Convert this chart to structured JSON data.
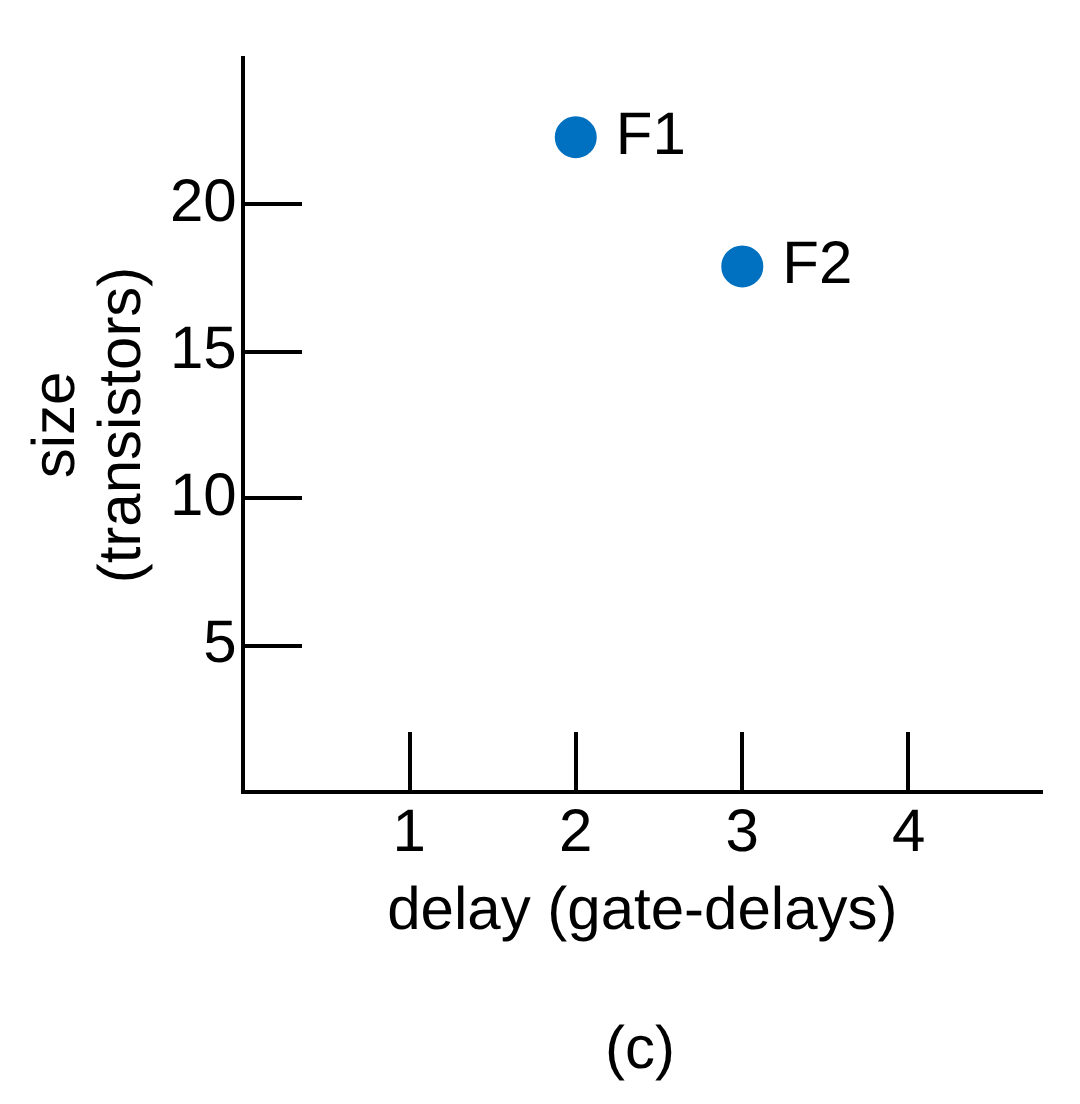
{
  "chart_data": {
    "type": "scatter",
    "xlabel": "delay (gate-delays)",
    "ylabel": "size (transistors)",
    "xlim": [
      0,
      4.8
    ],
    "xticks": [
      1,
      2,
      3,
      4
    ],
    "ylim": [
      0,
      25
    ],
    "yticks": [
      5,
      10,
      15,
      20
    ],
    "grid": false,
    "legend": false,
    "marker": "circle",
    "series": [
      {
        "name": "F1",
        "color": "#0070c0",
        "x": [
          2
        ],
        "values": [
          22.3
        ]
      },
      {
        "name": "F2",
        "color": "#0070c0",
        "x": [
          3
        ],
        "values": [
          17.9
        ]
      }
    ],
    "annotations": [
      "(c)"
    ]
  }
}
